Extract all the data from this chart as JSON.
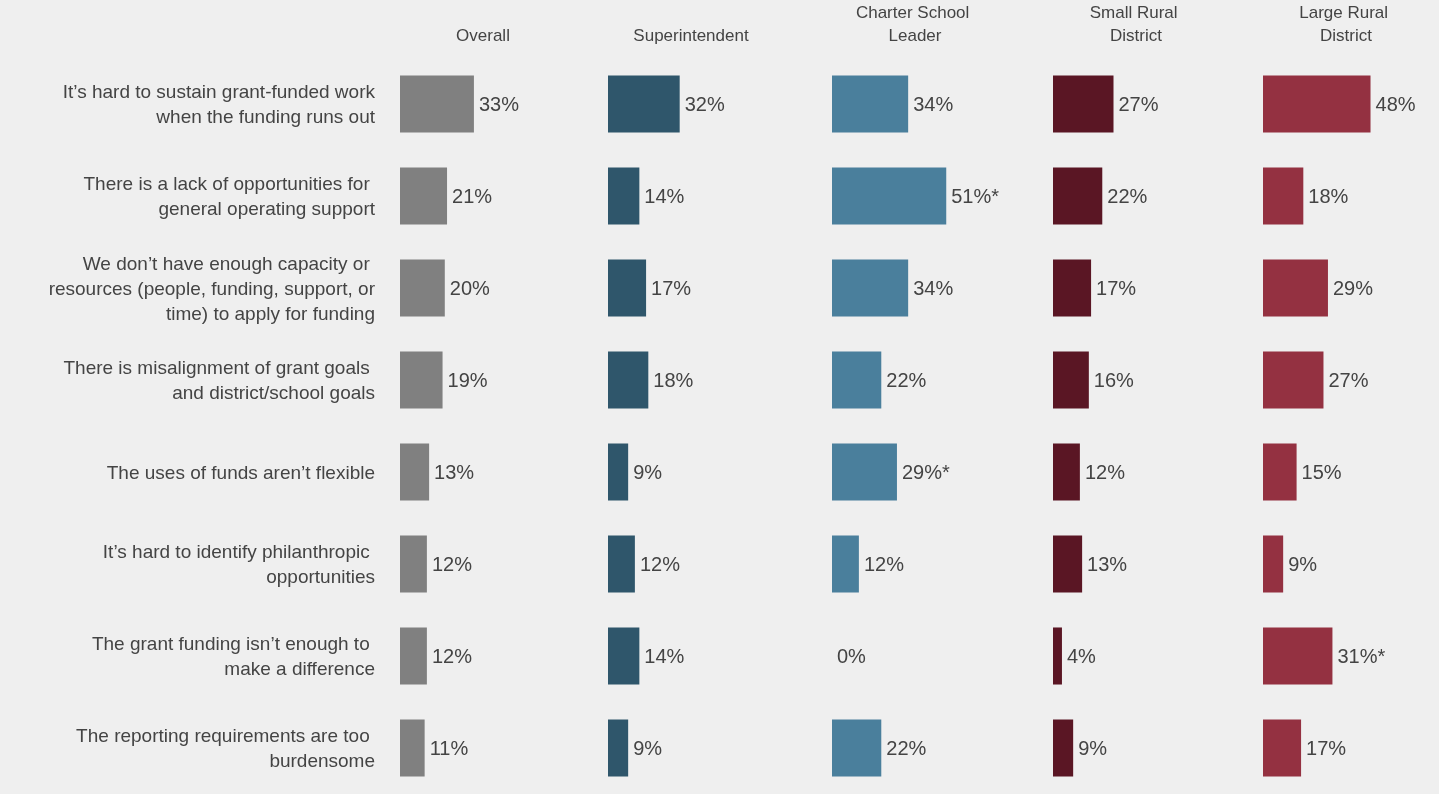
{
  "chart_data": [
    {
      "type": "bar",
      "orientation": "horizontal",
      "title": "Overall",
      "categories": [
        "It’s hard to sustain grant-funded work when the funding runs out",
        "There is a lack of opportunities for general operating support",
        "We don’t have enough capacity or resources (people, funding, support, or time) to apply for funding",
        "There is misalignment of grant goals and district/school goals",
        "The uses of funds aren’t flexible",
        "It’s hard to identify philanthropic opportunities",
        "The grant funding isn’t enough to make a difference",
        "The reporting requirements are too burdensome"
      ],
      "values": [
        33,
        21,
        20,
        19,
        13,
        12,
        12,
        11
      ],
      "value_labels": [
        "33%",
        "21%",
        "20%",
        "19%",
        "13%",
        "12%",
        "12%",
        "11%"
      ],
      "color": "#808080",
      "tick_labels": "y"
    },
    {
      "type": "bar",
      "orientation": "horizontal",
      "title": "Superintendent",
      "categories": [
        null,
        null,
        null,
        null,
        null,
        null,
        null,
        null
      ],
      "values": [
        32,
        14,
        17,
        18,
        9,
        12,
        14,
        9
      ],
      "value_labels": [
        "32%",
        "14%",
        "17%",
        "18%",
        "9%",
        "12%",
        "14%",
        "9%"
      ],
      "color": "#2f566b",
      "tick_labels": false
    },
    {
      "type": "bar",
      "orientation": "horizontal",
      "title": "Charter School Leader",
      "categories": [
        null,
        null,
        null,
        null,
        null,
        null,
        null,
        null
      ],
      "values": [
        34,
        51,
        34,
        22,
        29,
        12,
        0,
        22
      ],
      "value_labels": [
        "34%",
        "51%*",
        "34%",
        "22%",
        "29%*",
        "12%",
        "0%",
        "22%"
      ],
      "color": "#4a7f9c",
      "tick_labels": false
    },
    {
      "type": "bar",
      "orientation": "horizontal",
      "title": "Small Rural District",
      "categories": [
        null,
        null,
        null,
        null,
        null,
        null,
        null,
        null
      ],
      "values": [
        27,
        22,
        17,
        16,
        12,
        13,
        4,
        9
      ],
      "value_labels": [
        "27%",
        "22%",
        "17%",
        "16%",
        "12%",
        "13%",
        "4%",
        "9%"
      ],
      "color": "#5a1624",
      "tick_labels": false
    },
    {
      "type": "bar",
      "orientation": "horizontal",
      "title": "Large Rural District",
      "categories": [
        null,
        null,
        null,
        null,
        null,
        null,
        null,
        null
      ],
      "values": [
        48,
        18,
        29,
        27,
        15,
        9,
        31,
        17
      ],
      "value_labels": [
        "48%",
        "18%",
        "29%",
        "27%",
        "15%",
        "9%",
        "31%*",
        "17%"
      ],
      "color": "#943141",
      "tick_labels": false
    }
  ]
}
